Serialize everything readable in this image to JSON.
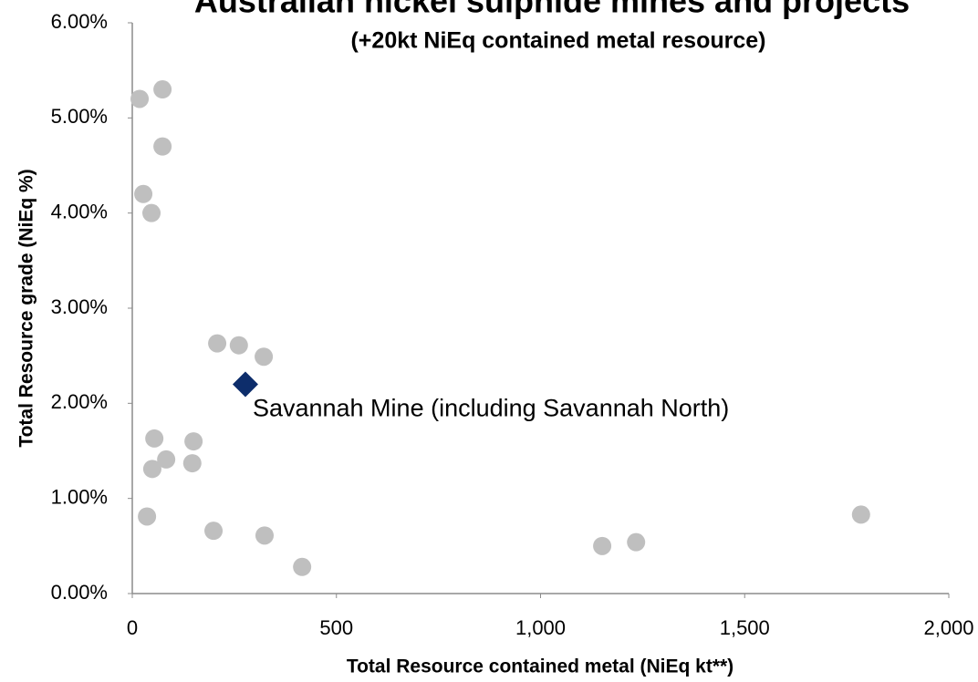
{
  "chart_data": {
    "type": "scatter",
    "title": "Australian nickel sulphide mines and projects",
    "subtitle": "(+20kt NiEq contained metal resource)",
    "x_label": "Total Resource contained metal (NiEq kt**)",
    "y_label": "Total Resource grade (NiEq %)",
    "xlim": [
      0,
      2000
    ],
    "xticks": [
      0,
      500,
      {
        "value": 1000,
        "label": "1,000"
      },
      {
        "value": 1500,
        "label": "1,500"
      },
      {
        "value": 2000,
        "label": "2,000"
      }
    ],
    "ylim": [
      0,
      6
    ],
    "yticks": [
      {
        "value": 0,
        "label": "0.00%"
      },
      {
        "value": 1,
        "label": "1.00%"
      },
      {
        "value": 2,
        "label": "2.00%"
      },
      {
        "value": 3,
        "label": "3.00%"
      },
      {
        "value": 4,
        "label": "4.00%"
      },
      {
        "value": 5,
        "label": "5.00%"
      },
      {
        "value": 6,
        "label": "6.00%"
      }
    ],
    "grid": false,
    "series": [
      {
        "color": "#bfbfbf",
        "marker": "circle",
        "x": [
          18,
          74,
          74,
          27,
          47,
          208,
          261,
          322,
          54,
          150,
          83,
          147,
          49,
          36,
          199,
          324,
          416,
          1151,
          1234,
          1785
        ],
        "values": [
          5.2,
          5.3,
          4.7,
          4.2,
          4.0,
          2.63,
          2.61,
          2.49,
          1.63,
          1.6,
          1.41,
          1.37,
          1.31,
          0.81,
          0.66,
          0.61,
          0.28,
          0.5,
          0.54,
          0.83
        ]
      },
      {
        "name": "Savannah Mine (including Savannah North)",
        "color": "#0d2d6b",
        "marker": "diamond",
        "x": [
          277
        ],
        "values": [
          2.2
        ]
      }
    ]
  }
}
